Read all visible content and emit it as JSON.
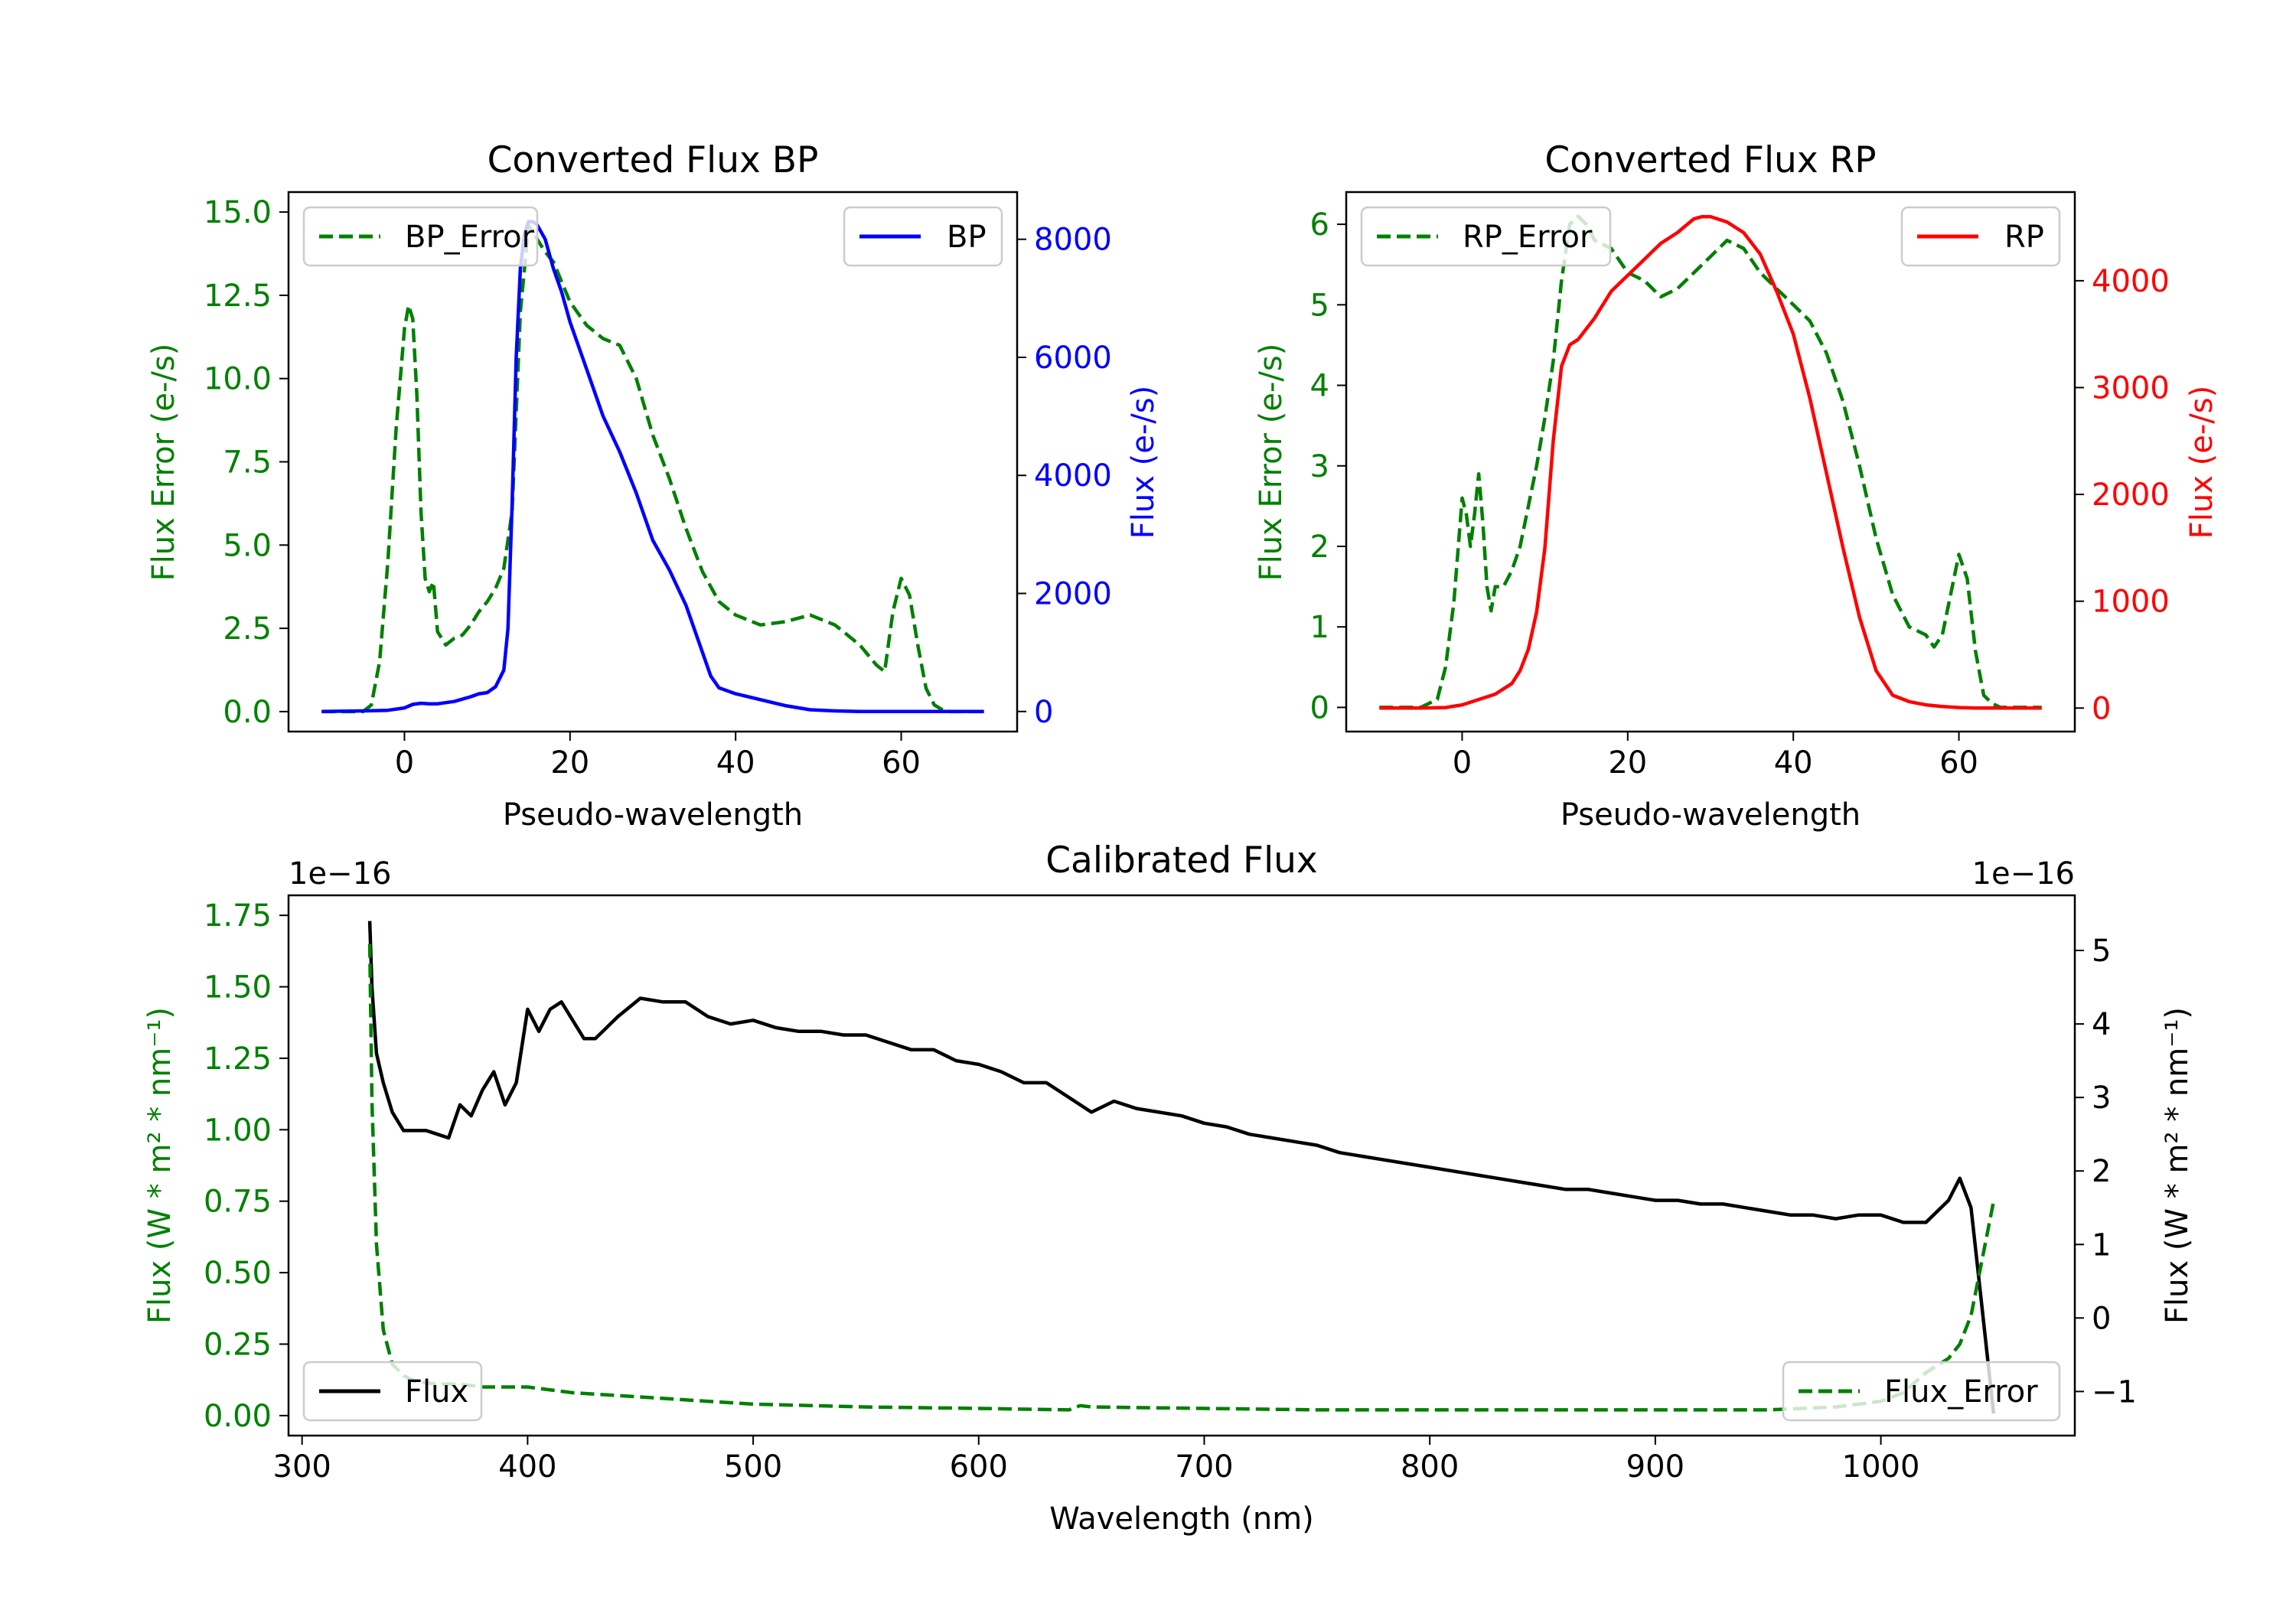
{
  "chart_data": [
    {
      "id": "bp",
      "type": "line",
      "title": "Converted Flux BP",
      "xlabel": "Pseudo-wavelength",
      "ylabel_left": "Flux Error (e-/s)",
      "ylabel_right": "Flux (e-/s)",
      "xlim": [
        -14,
        74
      ],
      "ylim_left": [
        -0.6,
        15.6
      ],
      "ylim_right": [
        -340,
        8800
      ],
      "xticks": [
        0,
        20,
        40,
        60
      ],
      "yticks_left": [
        0.0,
        2.5,
        5.0,
        7.5,
        10.0,
        12.5,
        15.0
      ],
      "yticks_left_labels": [
        "0.0",
        "2.5",
        "5.0",
        "7.5",
        "10.0",
        "12.5",
        "15.0"
      ],
      "yticks_right": [
        0,
        2000,
        4000,
        6000,
        8000
      ],
      "yticks_right_labels": [
        "0",
        "2000",
        "4000",
        "6000",
        "8000"
      ],
      "left_color": "#008000",
      "right_color": "#0000ff",
      "legend_left": {
        "label": "BP_Error",
        "placement": "upper-left",
        "style": "dashed",
        "color": "#008000"
      },
      "legend_right": {
        "label": "BP",
        "placement": "upper-right",
        "style": "solid",
        "color": "#0000ff"
      },
      "series": [
        {
          "name": "BP_Error",
          "axis": "left",
          "style": "dashed",
          "color": "#008000",
          "x": [
            -10,
            -5,
            -4,
            -3,
            -2,
            -1,
            0,
            0.5,
            1,
            1.5,
            2,
            2.5,
            3,
            3.5,
            4,
            5,
            6,
            7,
            8,
            9,
            10,
            11,
            12,
            13,
            14,
            15,
            16,
            17,
            18,
            20,
            22,
            24,
            26,
            28,
            30,
            32,
            34,
            36,
            38,
            40,
            43,
            46,
            49,
            52,
            55,
            57,
            58,
            59,
            60,
            61,
            62,
            63,
            64,
            65,
            66,
            70
          ],
          "values": [
            0,
            0,
            0.2,
            1.5,
            4.5,
            8.5,
            11.5,
            12.2,
            11.8,
            9.5,
            6.0,
            4.0,
            3.6,
            3.9,
            2.4,
            2.0,
            2.2,
            2.3,
            2.6,
            3.0,
            3.3,
            3.7,
            4.3,
            6.0,
            12.0,
            14.6,
            14.2,
            13.8,
            13.5,
            12.3,
            11.6,
            11.2,
            11.0,
            10.0,
            8.3,
            7.0,
            5.5,
            4.2,
            3.3,
            2.9,
            2.6,
            2.7,
            2.9,
            2.6,
            2.0,
            1.4,
            1.2,
            3.0,
            4.0,
            3.5,
            2.0,
            0.7,
            0.2,
            0.05,
            0,
            0
          ]
        },
        {
          "name": "BP",
          "axis": "right",
          "style": "solid",
          "color": "#0000ff",
          "x": [
            -10,
            -5,
            -2,
            0,
            1,
            2,
            3,
            4,
            6,
            8,
            9,
            10,
            11,
            12,
            12.5,
            13,
            13.5,
            14,
            14.5,
            15,
            15.5,
            16,
            17,
            18,
            19,
            20,
            22,
            24,
            26,
            28,
            30,
            32,
            34,
            36,
            37,
            38,
            40,
            43,
            46,
            49,
            52,
            55,
            58,
            61,
            64,
            70
          ],
          "values": [
            0,
            10,
            20,
            60,
            120,
            140,
            130,
            130,
            170,
            250,
            300,
            320,
            420,
            700,
            1400,
            3500,
            6000,
            7500,
            8100,
            8300,
            8300,
            8250,
            8000,
            7500,
            7100,
            6600,
            5800,
            5000,
            4400,
            3700,
            2900,
            2400,
            1800,
            1000,
            600,
            400,
            300,
            200,
            100,
            30,
            10,
            0,
            0,
            0,
            0,
            0
          ]
        }
      ]
    },
    {
      "id": "rp",
      "type": "line",
      "title": "Converted Flux RP",
      "xlabel": "Pseudo-wavelength",
      "ylabel_left": "Flux Error (e-/s)",
      "ylabel_right": "Flux (e-/s)",
      "xlim": [
        -14,
        74
      ],
      "ylim_left": [
        -0.3,
        6.4
      ],
      "ylim_right": [
        -220,
        4830
      ],
      "xticks": [
        0,
        20,
        40,
        60
      ],
      "yticks_left": [
        0,
        1,
        2,
        3,
        4,
        5,
        6
      ],
      "yticks_left_labels": [
        "0",
        "1",
        "2",
        "3",
        "4",
        "5",
        "6"
      ],
      "yticks_right": [
        0,
        1000,
        2000,
        3000,
        4000
      ],
      "yticks_right_labels": [
        "0",
        "1000",
        "2000",
        "3000",
        "4000"
      ],
      "left_color": "#008000",
      "right_color": "#ff0000",
      "legend_left": {
        "label": "RP_Error",
        "placement": "upper-left",
        "style": "dashed",
        "color": "#008000"
      },
      "legend_right": {
        "label": "RP",
        "placement": "upper-right",
        "style": "solid",
        "color": "#ff0000"
      },
      "series": [
        {
          "name": "RP_Error",
          "axis": "left",
          "style": "dashed",
          "color": "#008000",
          "x": [
            -10,
            -5,
            -3,
            -2,
            -1,
            0,
            0.5,
            1,
            1.5,
            2,
            2.5,
            3,
            3.5,
            4,
            5,
            6,
            7,
            8,
            9,
            10,
            11,
            12,
            13,
            14,
            15,
            16,
            18,
            20,
            22,
            24,
            26,
            28,
            30,
            32,
            34,
            36,
            38,
            40,
            42,
            44,
            46,
            48,
            50,
            52,
            54,
            56,
            57,
            58,
            59,
            60,
            61,
            62,
            63,
            64,
            65,
            70
          ],
          "values": [
            0,
            0,
            0.1,
            0.5,
            1.3,
            2.6,
            2.4,
            2.0,
            2.4,
            2.9,
            2.3,
            1.5,
            1.2,
            1.5,
            1.5,
            1.7,
            2.0,
            2.5,
            3.0,
            3.6,
            4.3,
            5.3,
            6.0,
            6.1,
            6.0,
            5.8,
            5.7,
            5.4,
            5.3,
            5.1,
            5.2,
            5.4,
            5.6,
            5.8,
            5.7,
            5.4,
            5.2,
            5.0,
            4.8,
            4.4,
            3.8,
            3.0,
            2.1,
            1.4,
            1.0,
            0.9,
            0.75,
            0.9,
            1.4,
            1.9,
            1.6,
            0.7,
            0.15,
            0.05,
            0,
            0
          ]
        },
        {
          "name": "RP",
          "axis": "right",
          "style": "solid",
          "color": "#ff0000",
          "x": [
            -10,
            -5,
            -2,
            0,
            2,
            4,
            6,
            7,
            8,
            9,
            10,
            11,
            12,
            13,
            14,
            16,
            18,
            20,
            22,
            24,
            26,
            28,
            29,
            30,
            32,
            34,
            36,
            38,
            40,
            42,
            44,
            46,
            48,
            50,
            52,
            54,
            56,
            58,
            60,
            62,
            65,
            70
          ],
          "values": [
            0,
            0,
            5,
            30,
            80,
            130,
            230,
            350,
            550,
            900,
            1500,
            2500,
            3200,
            3400,
            3450,
            3650,
            3900,
            4050,
            4200,
            4350,
            4450,
            4580,
            4600,
            4600,
            4550,
            4450,
            4250,
            3900,
            3500,
            2900,
            2200,
            1500,
            850,
            350,
            120,
            60,
            30,
            15,
            5,
            0,
            0,
            0
          ]
        }
      ]
    },
    {
      "id": "cal",
      "type": "line",
      "title": "Calibrated Flux",
      "xlabel": "Wavelength (nm)",
      "ylabel_left": "Flux (W * m² * nm⁻¹)",
      "ylabel_right": "Flux (W * m² * nm⁻¹)",
      "offset_left": "1e−16",
      "offset_right": "1e−16",
      "xlim": [
        294,
        1086
      ],
      "ylim_left": [
        -0.07,
        1.82
      ],
      "ylim_right": [
        -1.6,
        5.75
      ],
      "xticks": [
        300,
        400,
        500,
        600,
        700,
        800,
        900,
        1000
      ],
      "yticks_left": [
        0.0,
        0.25,
        0.5,
        0.75,
        1.0,
        1.25,
        1.5,
        1.75
      ],
      "yticks_left_labels": [
        "0.00",
        "0.25",
        "0.50",
        "0.75",
        "1.00",
        "1.25",
        "1.50",
        "1.75"
      ],
      "yticks_right": [
        -1,
        0,
        1,
        2,
        3,
        4,
        5
      ],
      "yticks_right_labels": [
        "−1",
        "0",
        "1",
        "2",
        "3",
        "4",
        "5"
      ],
      "left_color": "#008000",
      "right_color": "#000000",
      "legend_left": {
        "label": "Flux",
        "placement": "lower-left",
        "style": "solid",
        "color": "#000000"
      },
      "legend_right": {
        "label": "Flux_Error",
        "placement": "lower-right",
        "style": "dashed",
        "color": "#008000"
      },
      "series": [
        {
          "name": "Flux",
          "axis": "right",
          "style": "solid",
          "color": "#000000",
          "x": [
            330,
            331,
            333,
            336,
            340,
            345,
            350,
            355,
            360,
            365,
            370,
            375,
            380,
            385,
            390,
            395,
            400,
            405,
            410,
            415,
            420,
            425,
            430,
            440,
            450,
            460,
            470,
            480,
            490,
            500,
            510,
            520,
            530,
            540,
            550,
            560,
            570,
            580,
            590,
            600,
            610,
            620,
            630,
            640,
            650,
            660,
            670,
            680,
            690,
            700,
            710,
            720,
            730,
            740,
            750,
            760,
            770,
            780,
            790,
            800,
            810,
            820,
            830,
            840,
            850,
            860,
            870,
            880,
            890,
            900,
            910,
            920,
            930,
            940,
            950,
            960,
            970,
            980,
            990,
            1000,
            1010,
            1020,
            1030,
            1035,
            1040,
            1045,
            1050
          ],
          "values": [
            5.4,
            4.5,
            3.6,
            3.2,
            2.8,
            2.55,
            2.55,
            2.55,
            2.5,
            2.45,
            2.9,
            2.75,
            3.1,
            3.35,
            2.9,
            3.2,
            4.2,
            3.9,
            4.2,
            4.3,
            4.05,
            3.8,
            3.8,
            4.1,
            4.35,
            4.3,
            4.3,
            4.1,
            4.0,
            4.05,
            3.95,
            3.9,
            3.9,
            3.85,
            3.85,
            3.75,
            3.65,
            3.65,
            3.5,
            3.45,
            3.35,
            3.2,
            3.2,
            3.0,
            2.8,
            2.95,
            2.85,
            2.8,
            2.75,
            2.65,
            2.6,
            2.5,
            2.45,
            2.4,
            2.35,
            2.25,
            2.2,
            2.15,
            2.1,
            2.05,
            2.0,
            1.95,
            1.9,
            1.85,
            1.8,
            1.75,
            1.75,
            1.7,
            1.65,
            1.6,
            1.6,
            1.55,
            1.55,
            1.5,
            1.45,
            1.4,
            1.4,
            1.35,
            1.4,
            1.4,
            1.3,
            1.3,
            1.6,
            1.9,
            1.5,
            0.1,
            -1.3
          ]
        },
        {
          "name": "Flux_Error",
          "axis": "left",
          "style": "dashed",
          "color": "#008000",
          "x": [
            330,
            331,
            333,
            336,
            340,
            345,
            350,
            360,
            370,
            380,
            390,
            400,
            420,
            440,
            460,
            480,
            500,
            550,
            600,
            640,
            645,
            650,
            700,
            750,
            800,
            850,
            900,
            950,
            980,
            1000,
            1010,
            1020,
            1030,
            1035,
            1040,
            1045,
            1050
          ],
          "values": [
            1.65,
            1.1,
            0.6,
            0.3,
            0.18,
            0.14,
            0.12,
            0.11,
            0.11,
            0.1,
            0.1,
            0.1,
            0.08,
            0.07,
            0.06,
            0.05,
            0.04,
            0.03,
            0.025,
            0.02,
            0.035,
            0.03,
            0.025,
            0.02,
            0.02,
            0.02,
            0.02,
            0.02,
            0.03,
            0.05,
            0.08,
            0.15,
            0.2,
            0.25,
            0.35,
            0.55,
            0.75
          ]
        }
      ]
    }
  ]
}
